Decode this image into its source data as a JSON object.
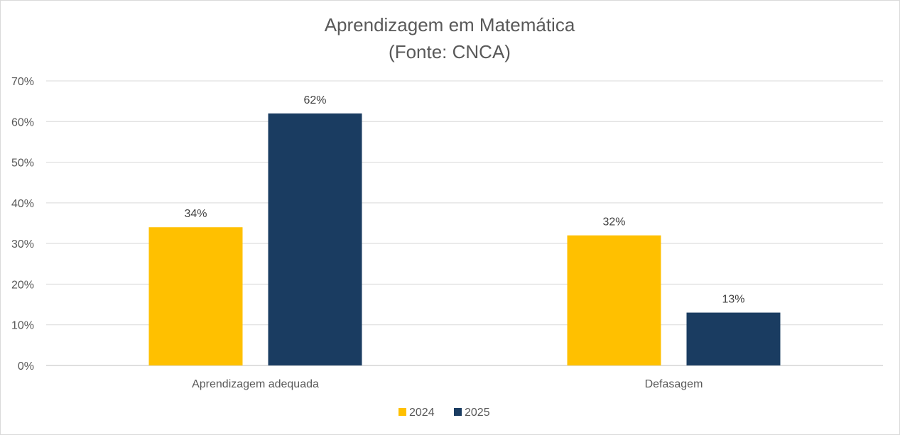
{
  "chart_data": {
    "type": "bar",
    "title": "Aprendizagem em Matemática",
    "subtitle": "(Fonte: CNCA)",
    "categories": [
      "Aprendizagem adequada",
      "Defasagem"
    ],
    "series": [
      {
        "name": "2024",
        "values": [
          34,
          32
        ],
        "labels": [
          "34%",
          "32%"
        ],
        "color": "#FFC000"
      },
      {
        "name": "2025",
        "values": [
          62,
          13
        ],
        "labels": [
          "62%",
          "13%"
        ],
        "color": "#1A3C61"
      }
    ],
    "ylim": [
      0,
      70
    ],
    "yticks": [
      0,
      10,
      20,
      30,
      40,
      50,
      60,
      70
    ],
    "ytick_labels": [
      "0%",
      "10%",
      "20%",
      "30%",
      "40%",
      "50%",
      "60%",
      "70%"
    ],
    "grid": true,
    "legend": "bottom-center",
    "xlabel": "",
    "ylabel": ""
  }
}
